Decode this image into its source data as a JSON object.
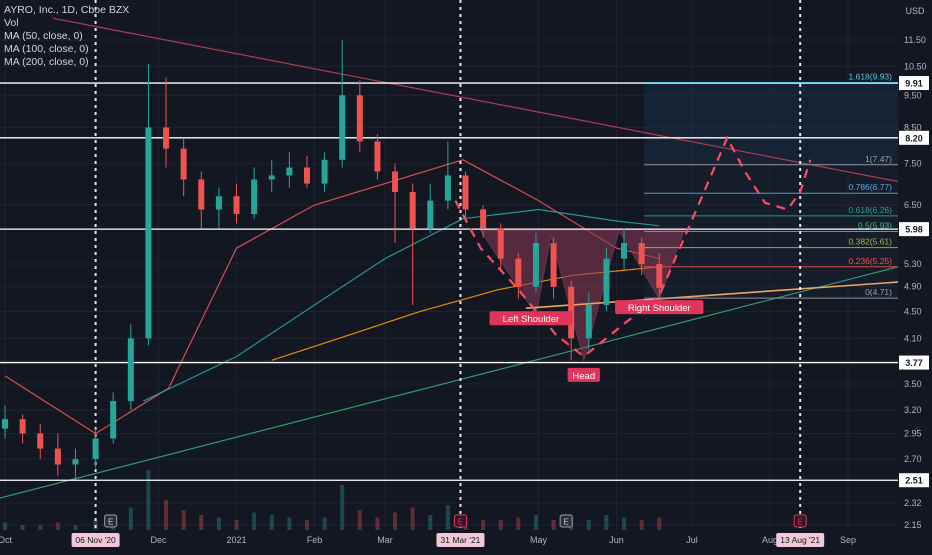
{
  "chart_data": {
    "type": "candlestick",
    "title": "AYRO, Inc., 1D, Cboe BZX",
    "currency": "USD",
    "indicators": [
      "Vol",
      "MA (50, close, 0)",
      "MA (100, close, 0)",
      "MA (200, close, 0)"
    ],
    "y_scale": "log",
    "y_ticks": [
      "11.50",
      "10.50",
      "9.50",
      "8.50",
      "7.50",
      "6.50",
      "5.30",
      "4.90",
      "4.50",
      "4.10",
      "3.80",
      "3.50",
      "3.20",
      "2.95",
      "2.70",
      "2.51",
      "2.32",
      "2.15"
    ],
    "x_ticks": [
      {
        "date": "2020-10-01",
        "label": "Oct"
      },
      {
        "date": "2020-12-01",
        "label": "Dec"
      },
      {
        "date": "2021-01-01",
        "label": "2021"
      },
      {
        "date": "2021-02-01",
        "label": "Feb"
      },
      {
        "date": "2021-03-01",
        "label": "Mar"
      },
      {
        "date": "2021-05-01",
        "label": "May"
      },
      {
        "date": "2021-06-01",
        "label": "Jun"
      },
      {
        "date": "2021-07-01",
        "label": "Jul"
      },
      {
        "date": "2021-08-01",
        "label": "Aug"
      },
      {
        "date": "2021-09-01",
        "label": "Sep"
      }
    ],
    "date_markers": [
      {
        "date": "2020-11-06",
        "label": "06 Nov '20"
      },
      {
        "date": "2021-03-31",
        "label": "31 Mar '21"
      },
      {
        "date": "2021-08-13",
        "label": "13 Aug '21"
      }
    ],
    "earnings_markers": [
      {
        "date": "2020-11-12",
        "label": "E",
        "type": "past"
      },
      {
        "date": "2021-03-31",
        "label": "E",
        "type": "upcoming"
      },
      {
        "date": "2021-05-12",
        "label": "E",
        "type": "past"
      },
      {
        "date": "2021-08-13",
        "label": "E",
        "type": "upcoming"
      }
    ],
    "horizontal_levels": [
      {
        "price": 9.91,
        "label": "9.91"
      },
      {
        "price": 8.2,
        "label": "8.20"
      },
      {
        "price": 5.98,
        "label": "5.98"
      },
      {
        "price": 3.77,
        "label": "3.77"
      },
      {
        "price": 2.51,
        "label": "2.51"
      }
    ],
    "fibonacci": [
      {
        "ratio": "1.618",
        "price": 9.93,
        "label": "1.618(9.93)",
        "color": "#5ec8e6"
      },
      {
        "ratio": "1",
        "price": 7.47,
        "label": "1(7.47)",
        "color": "#9aa3ad"
      },
      {
        "ratio": "0.786",
        "price": 6.77,
        "label": "0.786(6.77)",
        "color": "#57a7e8"
      },
      {
        "ratio": "0.618",
        "price": 6.26,
        "label": "0.618(6.26)",
        "color": "#26a69a"
      },
      {
        "ratio": "0.5",
        "price": 5.93,
        "label": "0.5(5.93)",
        "color": "#3fbf7f"
      },
      {
        "ratio": "0.382",
        "price": 5.61,
        "label": "0.382(5.61)",
        "color": "#9fbf3f"
      },
      {
        "ratio": "0.236",
        "price": 5.25,
        "label": "0.236(5.25)",
        "color": "#ef5350"
      },
      {
        "ratio": "0",
        "price": 4.71,
        "label": "0(4.71)",
        "color": "#9aa3ad"
      }
    ],
    "pattern_labels": [
      {
        "text": "Left Shoulder",
        "date": "2021-04-28",
        "price": 4.38
      },
      {
        "text": "Head",
        "date": "2021-05-19",
        "price": 3.6
      },
      {
        "text": "Right Shoulder",
        "date": "2021-06-18",
        "price": 4.55
      }
    ],
    "last_price": 4.88,
    "candles": [
      {
        "date": "2020-10-01",
        "o": 3.0,
        "h": 3.25,
        "l": 2.9,
        "c": 3.1
      },
      {
        "date": "2020-10-08",
        "o": 3.1,
        "h": 3.15,
        "l": 2.85,
        "c": 2.95
      },
      {
        "date": "2020-10-15",
        "o": 2.95,
        "h": 3.05,
        "l": 2.7,
        "c": 2.8
      },
      {
        "date": "2020-10-22",
        "o": 2.8,
        "h": 2.95,
        "l": 2.55,
        "c": 2.65
      },
      {
        "date": "2020-10-29",
        "o": 2.65,
        "h": 2.8,
        "l": 2.52,
        "c": 2.7
      },
      {
        "date": "2020-11-06",
        "o": 2.7,
        "h": 3.0,
        "l": 2.62,
        "c": 2.9
      },
      {
        "date": "2020-11-13",
        "o": 2.9,
        "h": 3.4,
        "l": 2.85,
        "c": 3.3
      },
      {
        "date": "2020-11-20",
        "o": 3.3,
        "h": 4.3,
        "l": 3.2,
        "c": 4.1
      },
      {
        "date": "2020-11-27",
        "o": 4.1,
        "h": 10.6,
        "l": 4.0,
        "c": 8.5
      },
      {
        "date": "2020-12-04",
        "o": 8.5,
        "h": 10.1,
        "l": 7.4,
        "c": 7.9
      },
      {
        "date": "2020-12-11",
        "o": 7.9,
        "h": 8.2,
        "l": 6.7,
        "c": 7.1
      },
      {
        "date": "2020-12-18",
        "o": 7.1,
        "h": 7.3,
        "l": 6.0,
        "c": 6.4
      },
      {
        "date": "2020-12-25",
        "o": 6.4,
        "h": 6.9,
        "l": 6.0,
        "c": 6.7
      },
      {
        "date": "2021-01-01",
        "o": 6.7,
        "h": 7.0,
        "l": 6.1,
        "c": 6.3
      },
      {
        "date": "2021-01-08",
        "o": 6.3,
        "h": 7.4,
        "l": 6.2,
        "c": 7.1
      },
      {
        "date": "2021-01-15",
        "o": 7.1,
        "h": 7.6,
        "l": 6.8,
        "c": 7.2
      },
      {
        "date": "2021-01-22",
        "o": 7.2,
        "h": 7.8,
        "l": 6.9,
        "c": 7.4
      },
      {
        "date": "2021-01-29",
        "o": 7.4,
        "h": 7.7,
        "l": 6.9,
        "c": 7.0
      },
      {
        "date": "2021-02-05",
        "o": 7.0,
        "h": 7.8,
        "l": 6.8,
        "c": 7.6
      },
      {
        "date": "2021-02-12",
        "o": 7.6,
        "h": 11.5,
        "l": 7.4,
        "c": 9.5
      },
      {
        "date": "2021-02-19",
        "o": 9.5,
        "h": 10.0,
        "l": 7.8,
        "c": 8.1
      },
      {
        "date": "2021-02-26",
        "o": 8.1,
        "h": 8.3,
        "l": 7.1,
        "c": 7.3
      },
      {
        "date": "2021-03-05",
        "o": 7.3,
        "h": 7.5,
        "l": 5.7,
        "c": 6.8
      },
      {
        "date": "2021-03-12",
        "o": 6.8,
        "h": 7.0,
        "l": 4.6,
        "c": 6.0
      },
      {
        "date": "2021-03-19",
        "o": 6.0,
        "h": 7.0,
        "l": 5.9,
        "c": 6.6
      },
      {
        "date": "2021-03-26",
        "o": 6.6,
        "h": 8.1,
        "l": 6.4,
        "c": 7.2
      },
      {
        "date": "2021-04-02",
        "o": 7.2,
        "h": 7.3,
        "l": 6.2,
        "c": 6.4
      },
      {
        "date": "2021-04-09",
        "o": 6.4,
        "h": 6.5,
        "l": 5.8,
        "c": 6.0
      },
      {
        "date": "2021-04-16",
        "o": 6.0,
        "h": 6.1,
        "l": 5.2,
        "c": 5.4
      },
      {
        "date": "2021-04-23",
        "o": 5.4,
        "h": 5.5,
        "l": 4.7,
        "c": 4.9
      },
      {
        "date": "2021-04-30",
        "o": 4.9,
        "h": 5.9,
        "l": 4.8,
        "c": 5.7
      },
      {
        "date": "2021-05-07",
        "o": 5.7,
        "h": 5.8,
        "l": 4.7,
        "c": 4.9
      },
      {
        "date": "2021-05-14",
        "o": 4.9,
        "h": 5.0,
        "l": 3.8,
        "c": 4.1
      },
      {
        "date": "2021-05-21",
        "o": 4.1,
        "h": 4.8,
        "l": 3.9,
        "c": 4.6
      },
      {
        "date": "2021-05-28",
        "o": 4.6,
        "h": 5.6,
        "l": 4.5,
        "c": 5.4
      },
      {
        "date": "2021-06-04",
        "o": 5.4,
        "h": 6.0,
        "l": 5.2,
        "c": 5.7
      },
      {
        "date": "2021-06-11",
        "o": 5.7,
        "h": 5.8,
        "l": 5.1,
        "c": 5.3
      },
      {
        "date": "2021-06-18",
        "o": 5.3,
        "h": 5.5,
        "l": 4.7,
        "c": 4.88
      }
    ],
    "moving_averages": [
      {
        "name": "MA (50, close, 0)",
        "color": "#ef5350",
        "points": [
          {
            "date": "2020-10-01",
            "v": 3.6
          },
          {
            "date": "2020-11-06",
            "v": 2.95
          },
          {
            "date": "2020-12-05",
            "v": 3.45
          },
          {
            "date": "2021-01-01",
            "v": 5.6
          },
          {
            "date": "2021-02-01",
            "v": 6.5
          },
          {
            "date": "2021-03-01",
            "v": 7.0
          },
          {
            "date": "2021-04-01",
            "v": 7.6
          },
          {
            "date": "2021-05-01",
            "v": 6.6
          },
          {
            "date": "2021-06-01",
            "v": 5.6
          },
          {
            "date": "2021-06-18",
            "v": 5.4
          }
        ]
      },
      {
        "name": "MA (100, close, 0)",
        "color": "#26a69a",
        "points": [
          {
            "date": "2020-11-25",
            "v": 3.3
          },
          {
            "date": "2021-01-01",
            "v": 3.85
          },
          {
            "date": "2021-02-01",
            "v": 4.6
          },
          {
            "date": "2021-03-01",
            "v": 5.4
          },
          {
            "date": "2021-04-01",
            "v": 6.2
          },
          {
            "date": "2021-05-01",
            "v": 6.4
          },
          {
            "date": "2021-06-01",
            "v": 6.15
          },
          {
            "date": "2021-06-18",
            "v": 6.05
          }
        ]
      },
      {
        "name": "MA (200, close, 0)",
        "color": "#ff9800",
        "points": [
          {
            "date": "2021-01-15",
            "v": 3.8
          },
          {
            "date": "2021-02-15",
            "v": 4.15
          },
          {
            "date": "2021-03-15",
            "v": 4.5
          },
          {
            "date": "2021-04-15",
            "v": 4.85
          },
          {
            "date": "2021-05-15",
            "v": 5.1
          },
          {
            "date": "2021-06-18",
            "v": 5.25
          }
        ]
      }
    ],
    "volume": [
      3,
      2,
      2,
      3,
      2,
      4,
      6,
      9,
      24,
      12,
      8,
      6,
      5,
      4,
      7,
      6,
      5,
      4,
      5,
      18,
      8,
      5,
      7,
      9,
      6,
      10,
      5,
      4,
      4,
      5,
      6,
      4,
      5,
      4,
      6,
      5,
      4,
      5
    ],
    "colors": {
      "background": "#131722",
      "up": "#26a69a",
      "down": "#ef5350",
      "grid": "#1f2330",
      "axis_text": "#b2b5be",
      "level_line": "#ffffff",
      "trendline": "#b53a52",
      "pattern_fill": "#8c3b58",
      "projection": "#ff4a63",
      "neckline": "#f0a26b",
      "support_line": "#2f9a6e"
    }
  }
}
